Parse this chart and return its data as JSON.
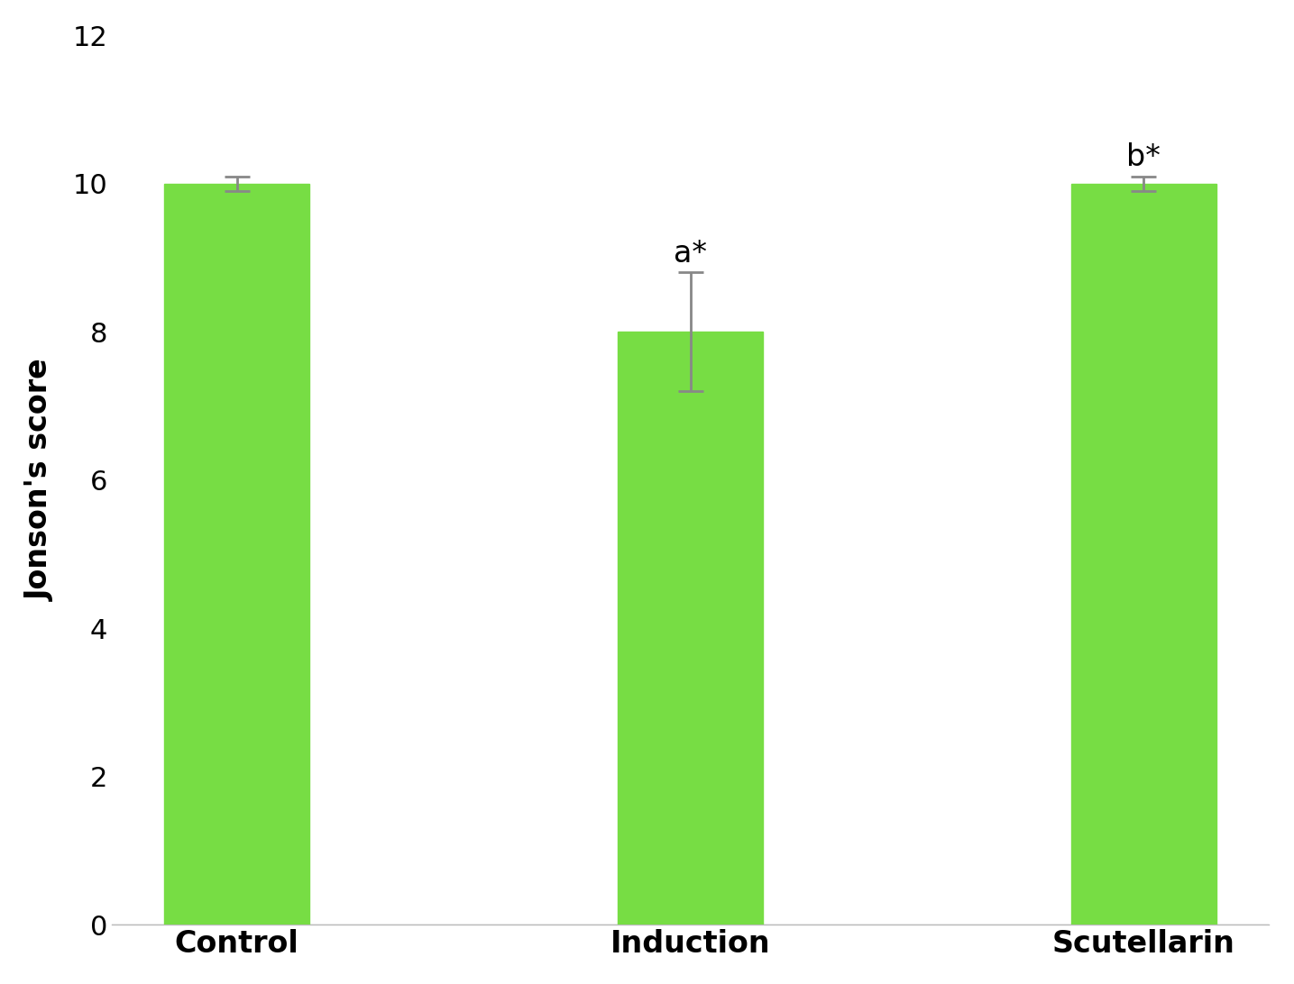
{
  "categories": [
    "Control",
    "Induction",
    "Scutellarin"
  ],
  "values": [
    10.0,
    8.0,
    10.0
  ],
  "errors": [
    0.1,
    0.8,
    0.1
  ],
  "bar_color": "#77dd44",
  "error_color": "#888888",
  "annotations": [
    "",
    "a*",
    "b*"
  ],
  "annotation_positions": [
    null,
    8.85,
    10.15
  ],
  "ylabel": "Jonson's score",
  "ylim": [
    0,
    12
  ],
  "yticks": [
    0,
    2,
    4,
    6,
    8,
    10,
    12
  ],
  "bar_width": 0.32,
  "ylabel_fontsize": 24,
  "tick_fontsize": 22,
  "annotation_fontsize": 24,
  "xtick_fontsize": 24,
  "background_color": "#ffffff",
  "capsize": 10,
  "elinewidth": 2,
  "capthick": 2
}
